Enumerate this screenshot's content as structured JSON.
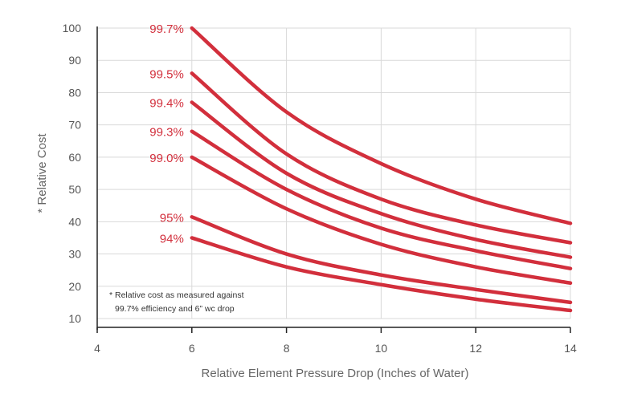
{
  "chart_data": {
    "type": "line",
    "xlabel": "Relative Element Pressure Drop (Inches of Water)",
    "ylabel": "* Relative Cost",
    "xlim": [
      4,
      14
    ],
    "ylim": [
      10,
      100
    ],
    "x_ticks": [
      "4",
      "6",
      "8",
      "10",
      "12",
      "14"
    ],
    "y_ticks": [
      "10",
      "20",
      "30",
      "40",
      "50",
      "60",
      "70",
      "80",
      "90",
      "100"
    ],
    "grid": true,
    "line_color": "#d22f3c",
    "note_lines": [
      "* Relative cost as measured against",
      "99.7% efficiency and 6” wc drop"
    ],
    "series": [
      {
        "name": "99.7%",
        "x": [
          6,
          8,
          10,
          12,
          14
        ],
        "values": [
          100,
          74,
          58,
          47,
          39.5
        ]
      },
      {
        "name": "99.5%",
        "x": [
          6,
          8,
          10,
          12,
          14
        ],
        "values": [
          86,
          61,
          47,
          39,
          33.5
        ]
      },
      {
        "name": "99.4%",
        "x": [
          6,
          8,
          10,
          12,
          14
        ],
        "values": [
          77,
          55,
          42.5,
          34.5,
          29
        ]
      },
      {
        "name": "99.3%",
        "x": [
          6,
          8,
          10,
          12,
          14
        ],
        "values": [
          68,
          50,
          38,
          31,
          25.5
        ]
      },
      {
        "name": "99.0%",
        "x": [
          6,
          8,
          10,
          12,
          14
        ],
        "values": [
          60,
          44,
          33,
          26,
          21
        ]
      },
      {
        "name": "95%",
        "x": [
          6,
          8,
          10,
          12,
          14
        ],
        "values": [
          41.5,
          30,
          23.5,
          19,
          15
        ]
      },
      {
        "name": "94%",
        "x": [
          6,
          8,
          10,
          12,
          14
        ],
        "values": [
          35,
          26,
          20.5,
          16,
          12.5
        ]
      }
    ]
  }
}
